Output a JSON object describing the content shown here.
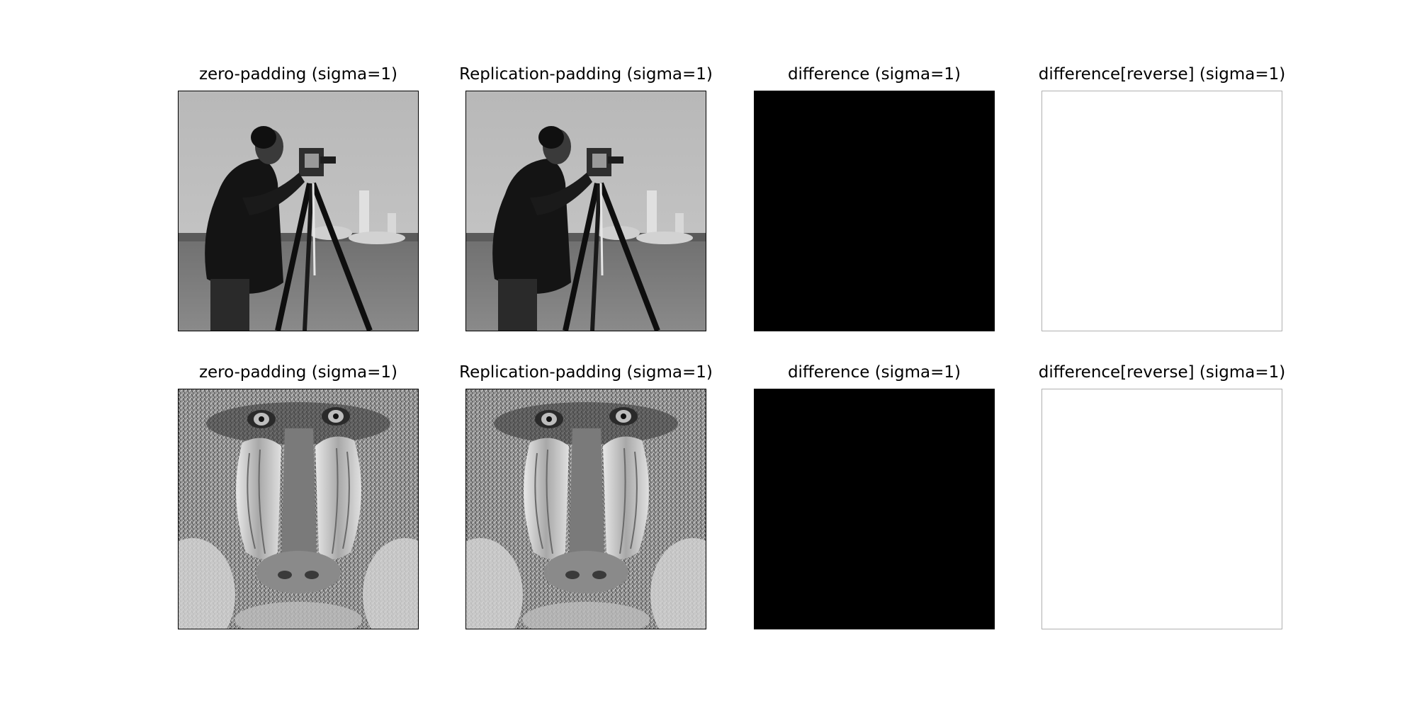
{
  "figure": {
    "rows": [
      {
        "subject": "cameraman",
        "panels": [
          {
            "title": "zero-padding (sigma=1)",
            "fill": "photo"
          },
          {
            "title": "Replication-padding (sigma=1)",
            "fill": "photo"
          },
          {
            "title": "difference (sigma=1)",
            "fill": "#000000"
          },
          {
            "title": "difference[reverse] (sigma=1)",
            "fill": "#ffffff"
          }
        ]
      },
      {
        "subject": "mandrill",
        "panels": [
          {
            "title": "zero-padding (sigma=1)",
            "fill": "photo"
          },
          {
            "title": "Replication-padding (sigma=1)",
            "fill": "photo"
          },
          {
            "title": "difference (sigma=1)",
            "fill": "#000000"
          },
          {
            "title": "difference[reverse] (sigma=1)",
            "fill": "#ffffff"
          }
        ]
      }
    ]
  }
}
